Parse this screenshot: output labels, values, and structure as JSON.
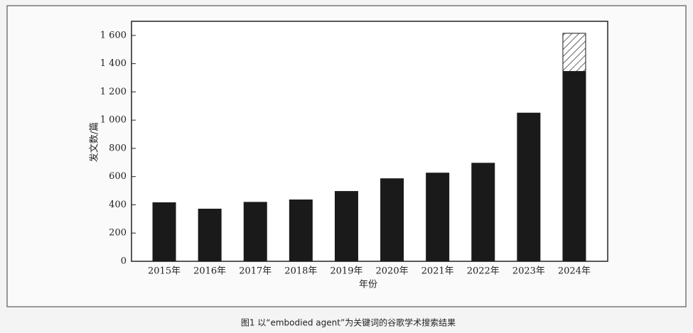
{
  "chart_data": {
    "type": "stacked_bar",
    "ylabel": "发文数/篇",
    "xlabel": "年份",
    "caption": "图1  以“embodied agent”为关键词的谷歌学术搜索结果",
    "categories": [
      "2015年",
      "2016年",
      "2017年",
      "2018年",
      "2019年",
      "2020年",
      "2021年",
      "2022年",
      "2023年",
      "2024年"
    ],
    "series": [
      {
        "color": "#1a1a1a",
        "values": [
          415,
          370,
          418,
          435,
          495,
          585,
          625,
          695,
          1050,
          1345
        ]
      },
      {
        "color": "#1a1a1a",
        "pattern": "hatch",
        "values": [
          null,
          null,
          null,
          null,
          null,
          null,
          null,
          null,
          null,
          270
        ]
      }
    ],
    "ylim": [
      0,
      1700
    ],
    "yticks": [
      0,
      200,
      400,
      600,
      800,
      {
        "value": 1000,
        "label": "1 000"
      },
      {
        "value": 1200,
        "label": "1 200"
      },
      {
        "value": 1400,
        "label": "1 400"
      },
      {
        "value": 1600,
        "label": "1 600"
      }
    ]
  }
}
